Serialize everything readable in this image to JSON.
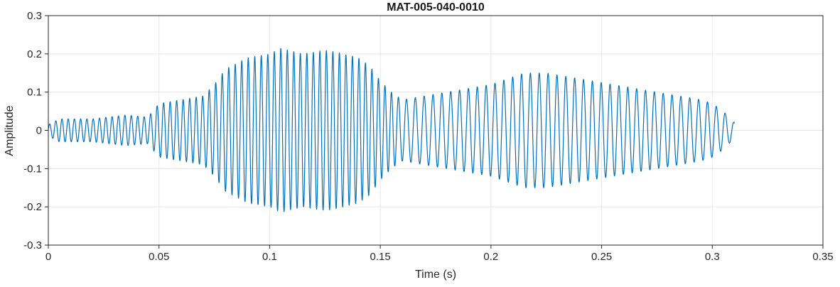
{
  "chart_data": {
    "type": "line",
    "title": "MAT-005-040-0010",
    "xlabel": "Time (s)",
    "ylabel": "Amplitude",
    "xlim": [
      0,
      0.35
    ],
    "ylim": [
      -0.3,
      0.3
    ],
    "xticks": [
      0,
      0.05,
      0.1,
      0.15,
      0.2,
      0.25,
      0.3,
      0.35
    ],
    "xtick_labels": [
      "0",
      "0.05",
      "0.1",
      "0.15",
      "0.2",
      "0.25",
      "0.3",
      "0.35"
    ],
    "yticks": [
      -0.3,
      -0.2,
      -0.1,
      0,
      0.1,
      0.2,
      0.3
    ],
    "ytick_labels": [
      "-0.3",
      "-0.2",
      "-0.1",
      "0",
      "0.1",
      "0.2",
      "0.3"
    ],
    "grid": true,
    "legend": null,
    "line_color": "#0072BD",
    "axis_color": "#262626",
    "grid_color": "#e6e6e6",
    "background_color": "#ffffff",
    "signal": {
      "description": "Amplitude-modulated waveform: weak oscillation 0-0.05 s, strong high-frequency burst peaking ~0.21 near 0.1-0.13 s, second lower-frequency burst peaking ~0.15 near 0.22 s, trace ends at 0.31 s",
      "t_start": 0,
      "t_end": 0.31,
      "sample_dt": 0.0001,
      "envelope": [
        [
          0,
          0.015
        ],
        [
          0.005,
          0.03
        ],
        [
          0.02,
          0.03
        ],
        [
          0.035,
          0.04
        ],
        [
          0.045,
          0.035
        ],
        [
          0.05,
          0.07
        ],
        [
          0.06,
          0.08
        ],
        [
          0.07,
          0.09
        ],
        [
          0.075,
          0.12
        ],
        [
          0.08,
          0.16
        ],
        [
          0.09,
          0.19
        ],
        [
          0.1,
          0.2
        ],
        [
          0.105,
          0.215
        ],
        [
          0.115,
          0.2
        ],
        [
          0.125,
          0.21
        ],
        [
          0.13,
          0.205
        ],
        [
          0.14,
          0.19
        ],
        [
          0.145,
          0.17
        ],
        [
          0.15,
          0.13
        ],
        [
          0.155,
          0.1
        ],
        [
          0.16,
          0.08
        ],
        [
          0.17,
          0.09
        ],
        [
          0.18,
          0.1
        ],
        [
          0.19,
          0.11
        ],
        [
          0.2,
          0.12
        ],
        [
          0.21,
          0.14
        ],
        [
          0.215,
          0.15
        ],
        [
          0.225,
          0.15
        ],
        [
          0.235,
          0.14
        ],
        [
          0.245,
          0.13
        ],
        [
          0.255,
          0.12
        ],
        [
          0.265,
          0.11
        ],
        [
          0.275,
          0.1
        ],
        [
          0.285,
          0.09
        ],
        [
          0.295,
          0.08
        ],
        [
          0.3,
          0.07
        ],
        [
          0.305,
          0.05
        ],
        [
          0.31,
          0.02
        ]
      ],
      "frequency_hz": [
        [
          0,
          360
        ],
        [
          0.05,
          340
        ],
        [
          0.155,
          340
        ],
        [
          0.162,
          250
        ],
        [
          0.31,
          250
        ]
      ]
    }
  }
}
